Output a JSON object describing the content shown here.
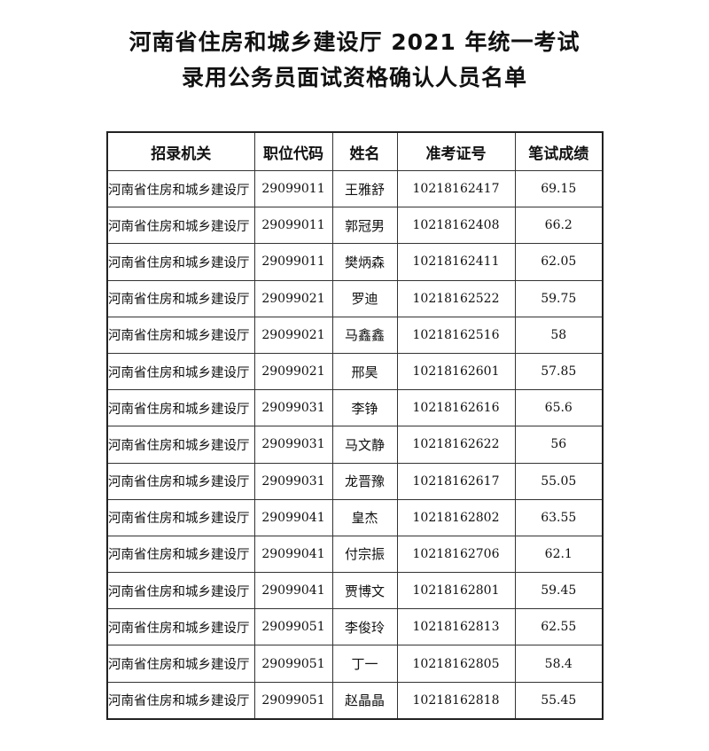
{
  "title_line1": "河南省住房和城乡建设厅 2021 年统一考试",
  "title_line2": "录用公务员面试资格确认人员名单",
  "columns": [
    "招录机关",
    "职位代码",
    "姓名",
    "准考证号",
    "笔试成绩"
  ],
  "rows": [
    [
      "河南省住房和城乡建设厅",
      "29099011",
      "王雅舒",
      "10218162417",
      "69.15"
    ],
    [
      "河南省住房和城乡建设厅",
      "29099011",
      "郭冠男",
      "10218162408",
      "66.2"
    ],
    [
      "河南省住房和城乡建设厅",
      "29099011",
      "樊炳森",
      "10218162411",
      "62.05"
    ],
    [
      "河南省住房和城乡建设厅",
      "29099021",
      "罗迪",
      "10218162522",
      "59.75"
    ],
    [
      "河南省住房和城乡建设厅",
      "29099021",
      "马鑫鑫",
      "10218162516",
      "58"
    ],
    [
      "河南省住房和城乡建设厅",
      "29099021",
      "邢昊",
      "10218162601",
      "57.85"
    ],
    [
      "河南省住房和城乡建设厅",
      "29099031",
      "李铮",
      "10218162616",
      "65.6"
    ],
    [
      "河南省住房和城乡建设厅",
      "29099031",
      "马文静",
      "10218162622",
      "56"
    ],
    [
      "河南省住房和城乡建设厅",
      "29099031",
      "龙晋豫",
      "10218162617",
      "55.05"
    ],
    [
      "河南省住房和城乡建设厅",
      "29099041",
      "皇杰",
      "10218162802",
      "63.55"
    ],
    [
      "河南省住房和城乡建设厅",
      "29099041",
      "付宗振",
      "10218162706",
      "62.1"
    ],
    [
      "河南省住房和城乡建设厅",
      "29099041",
      "贾博文",
      "10218162801",
      "59.45"
    ],
    [
      "河南省住房和城乡建设厅",
      "29099051",
      "李俊玲",
      "10218162813",
      "62.55"
    ],
    [
      "河南省住房和城乡建设厅",
      "29099051",
      "丁一",
      "10218162805",
      "58.4"
    ],
    [
      "河南省住房和城乡建设厅",
      "29099051",
      "赵晶晶",
      "10218162818",
      "55.45"
    ]
  ]
}
